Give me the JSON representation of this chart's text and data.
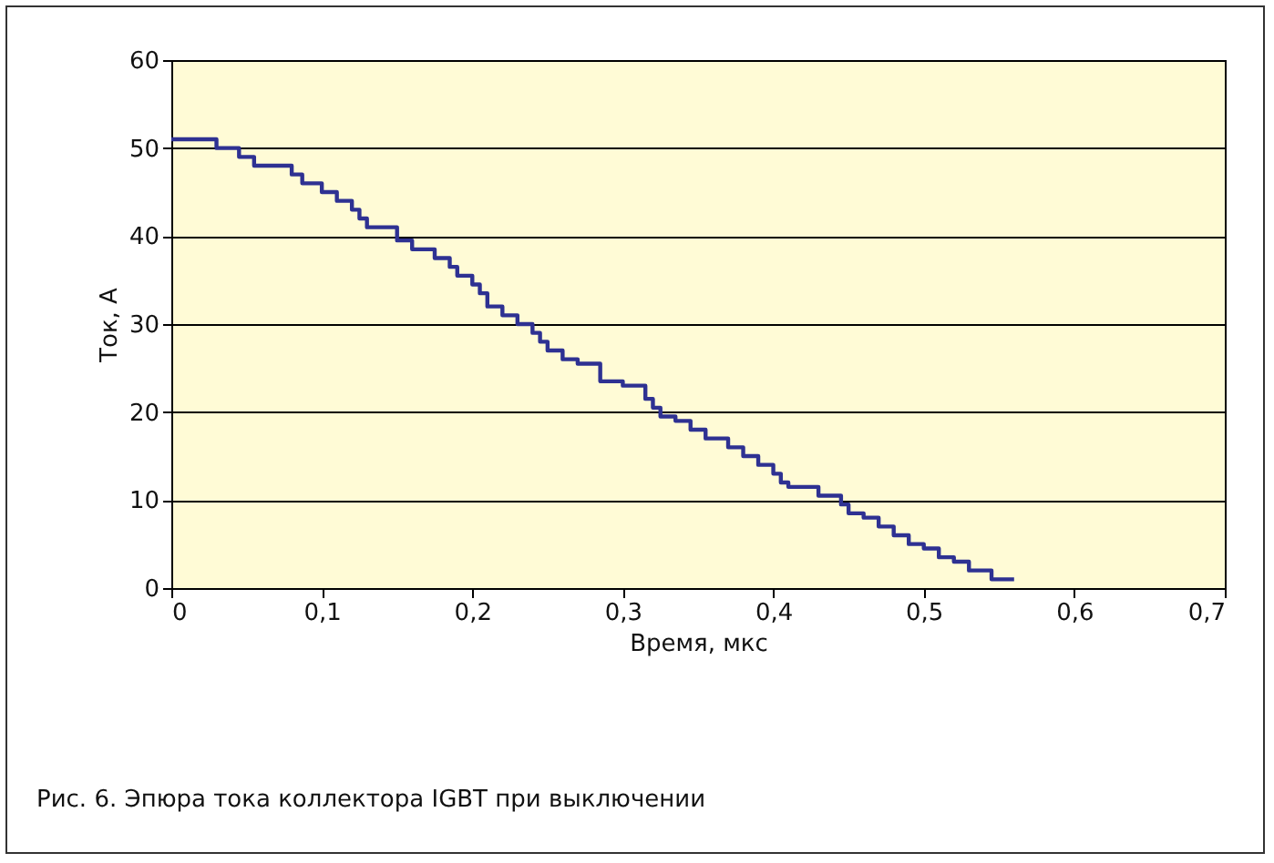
{
  "chart_data": {
    "type": "step",
    "xlabel": "Время, мкс",
    "ylabel": "Ток, А",
    "annotations": [
      "Рис. 6. Эпюра тока коллектора IGBT при выключении"
    ],
    "x": [
      0,
      0.03,
      0.045,
      0.055,
      0.08,
      0.087,
      0.1,
      0.11,
      0.12,
      0.125,
      0.13,
      0.15,
      0.16,
      0.175,
      0.185,
      0.19,
      0.2,
      0.205,
      0.21,
      0.22,
      0.23,
      0.24,
      0.245,
      0.25,
      0.26,
      0.27,
      0.285,
      0.3,
      0.315,
      0.32,
      0.325,
      0.335,
      0.345,
      0.355,
      0.37,
      0.38,
      0.39,
      0.4,
      0.405,
      0.41,
      0.43,
      0.445,
      0.45,
      0.46,
      0.47,
      0.48,
      0.49,
      0.5,
      0.51,
      0.52,
      0.53,
      0.545,
      0.56
    ],
    "series": [
      {
        "color": "#2e3192",
        "values": [
          51,
          50,
          49,
          48,
          47,
          46,
          45,
          44,
          43,
          42,
          41,
          39.5,
          38.5,
          37.5,
          36.5,
          35.5,
          34.5,
          33.5,
          32,
          31,
          30,
          29,
          28,
          27,
          26,
          25.5,
          23.5,
          23,
          21.5,
          20.5,
          19.5,
          19,
          18,
          17,
          16,
          15,
          14,
          13,
          12,
          11.5,
          10.5,
          9.5,
          8.5,
          8,
          7,
          6,
          5,
          4.5,
          3.5,
          3,
          2,
          1,
          1
        ]
      }
    ],
    "xlim": [
      0,
      0.7
    ],
    "xticks": [
      0,
      {
        "value": 0.1,
        "label": "0,1"
      },
      {
        "value": 0.2,
        "label": "0,2"
      },
      {
        "value": 0.3,
        "label": "0,3"
      },
      {
        "value": 0.4,
        "label": "0,4"
      },
      {
        "value": 0.5,
        "label": "0,5"
      },
      {
        "value": 0.6,
        "label": "0,6"
      },
      {
        "value": 0.7,
        "label": "0,7"
      }
    ],
    "ylim": [
      0,
      60
    ],
    "yticks": [
      0,
      10,
      20,
      30,
      40,
      50,
      60
    ],
    "grid": "y",
    "marker": "none",
    "line_style": "solid"
  }
}
